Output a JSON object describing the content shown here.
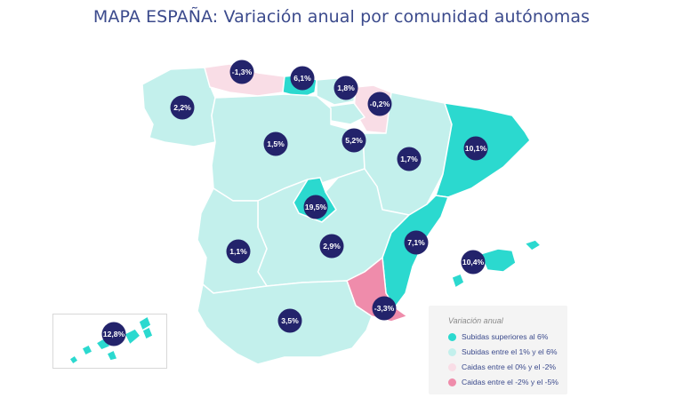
{
  "title": "MAPA ESPAÑA: Variación anual por comunidad autónomas",
  "colors": {
    "up_strong": "#2bd9cf",
    "up_moderate": "#c3f0ec",
    "down_small": "#f9dde6",
    "down_medium": "#ef8cab",
    "badge": "#23236b"
  },
  "legend": {
    "title": "Variación anual",
    "items": [
      {
        "label": "Subidas superiores al 6%",
        "color": "#2bd9cf"
      },
      {
        "label": "Subidas entre el 1% y el 6%",
        "color": "#c3f0ec"
      },
      {
        "label": "Caidas entre el 0% y el -2%",
        "color": "#f9dde6"
      },
      {
        "label": "Caidas entre el -2% y el -5%",
        "color": "#ef8cab"
      }
    ]
  },
  "regions": [
    {
      "label": "2,2%",
      "value": 2.2,
      "category": "up_moderate"
    },
    {
      "label": "-1,3%",
      "value": -1.3,
      "category": "down_small"
    },
    {
      "label": "6,1%",
      "value": 6.1,
      "category": "up_strong"
    },
    {
      "label": "1,8%",
      "value": 1.8,
      "category": "up_moderate"
    },
    {
      "label": "-0,2%",
      "value": -0.2,
      "category": "down_small"
    },
    {
      "label": "1,5%",
      "value": 1.5,
      "category": "up_moderate"
    },
    {
      "label": "5,2%",
      "value": 5.2,
      "category": "up_moderate"
    },
    {
      "label": "1,7%",
      "value": 1.7,
      "category": "up_moderate"
    },
    {
      "label": "10,1%",
      "value": 10.1,
      "category": "up_strong"
    },
    {
      "label": "19,5%",
      "value": 19.5,
      "category": "up_strong"
    },
    {
      "label": "1,1%",
      "value": 1.1,
      "category": "up_moderate"
    },
    {
      "label": "2,9%",
      "value": 2.9,
      "category": "up_moderate"
    },
    {
      "label": "7,1%",
      "value": 7.1,
      "category": "up_strong"
    },
    {
      "label": "10,4%",
      "value": 10.4,
      "category": "up_strong"
    },
    {
      "label": "-3,3%",
      "value": -3.3,
      "category": "down_medium"
    },
    {
      "label": "3,5%",
      "value": 3.5,
      "category": "up_moderate"
    },
    {
      "label": "12,8%",
      "value": 12.8,
      "category": "up_strong"
    }
  ]
}
